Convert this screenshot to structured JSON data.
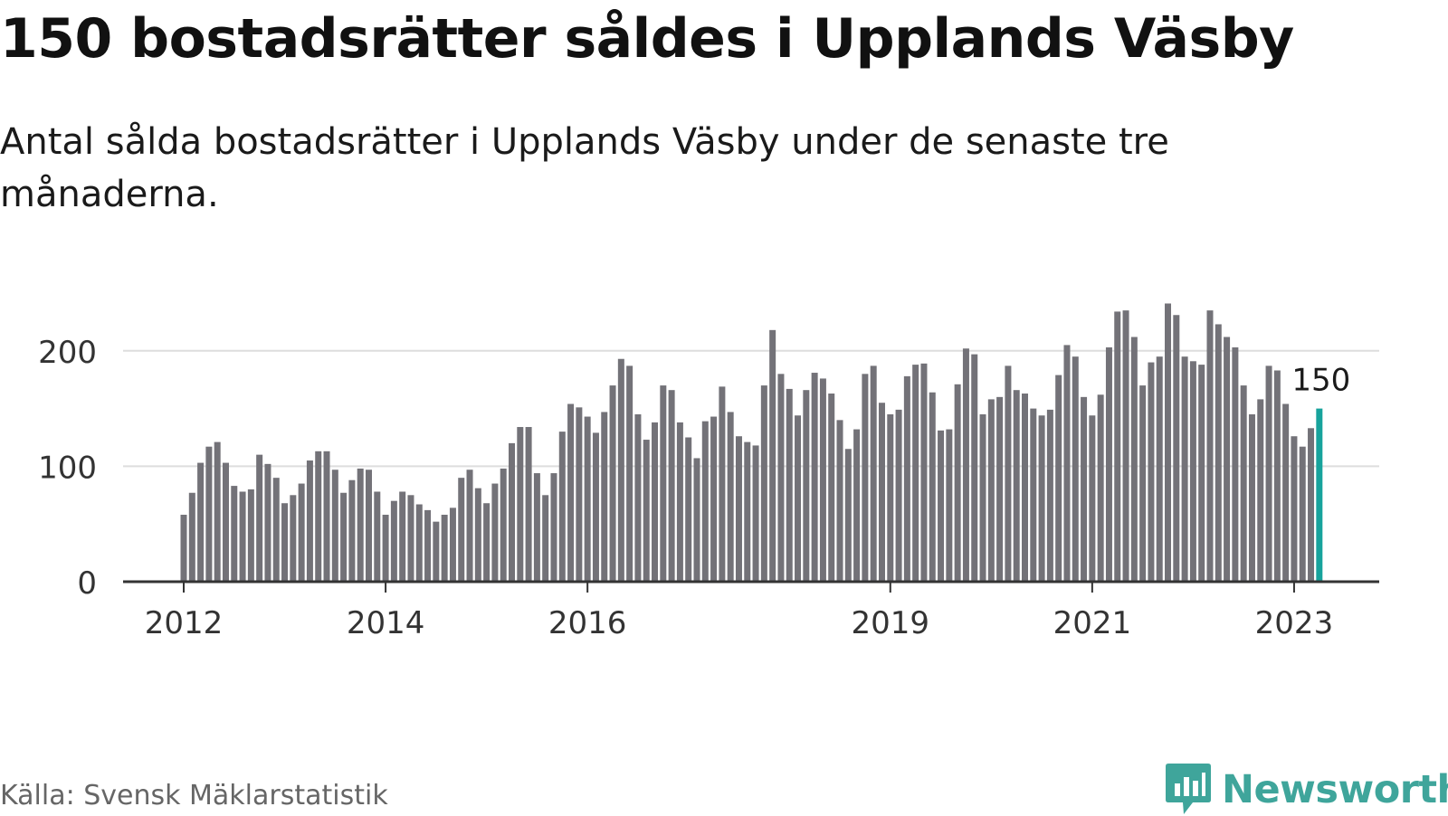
{
  "title": "150 bostadsrätter såldes i Upplands Väsby",
  "subtitle": "Antal sålda bostadsrätter i Upplands Väsby under de senaste tre månaderna.",
  "source": "Källa: Svensk Mäklarstatistik",
  "brand": {
    "name": "Newsworthy",
    "icon": "newsworthy-logo-icon"
  },
  "colors": {
    "bar": "#737278",
    "highlight": "#17a39c",
    "grid": "#dddddd",
    "axis": "#333333",
    "brand": "#3fa59b"
  },
  "chart_data": {
    "type": "bar",
    "title": "150 bostadsrätter såldes i Upplands Väsby",
    "xlabel": "",
    "ylabel": "",
    "ylim": [
      0,
      250
    ],
    "yticks": [
      0,
      100,
      200
    ],
    "grid": true,
    "x_start": "2012-01",
    "xticks": [
      {
        "label": "2012",
        "index": 0
      },
      {
        "label": "2014",
        "index": 24
      },
      {
        "label": "2016",
        "index": 48
      },
      {
        "label": "2019",
        "index": 84
      },
      {
        "label": "2021",
        "index": 108
      },
      {
        "label": "2023",
        "index": 132
      }
    ],
    "values": [
      58,
      77,
      103,
      117,
      121,
      103,
      83,
      78,
      80,
      110,
      102,
      90,
      68,
      75,
      85,
      105,
      113,
      113,
      97,
      77,
      88,
      98,
      97,
      78,
      58,
      70,
      78,
      75,
      67,
      62,
      52,
      58,
      64,
      90,
      97,
      81,
      68,
      85,
      98,
      120,
      134,
      134,
      94,
      75,
      94,
      130,
      154,
      151,
      143,
      129,
      147,
      170,
      193,
      187,
      145,
      123,
      138,
      170,
      166,
      138,
      125,
      107,
      139,
      143,
      169,
      147,
      126,
      121,
      118,
      170,
      218,
      180,
      167,
      144,
      166,
      181,
      176,
      163,
      140,
      115,
      132,
      180,
      187,
      155,
      145,
      149,
      178,
      188,
      189,
      164,
      131,
      132,
      171,
      202,
      197,
      145,
      158,
      160,
      187,
      166,
      163,
      150,
      144,
      149,
      179,
      205,
      195,
      160,
      144,
      162,
      203,
      234,
      235,
      212,
      170,
      190,
      195,
      241,
      231,
      195,
      191,
      188,
      235,
      223,
      212,
      203,
      170,
      145,
      158,
      187,
      183,
      154,
      126,
      117,
      133,
      150
    ],
    "highlight_index": 135,
    "annotation": {
      "text": "150",
      "index": 135
    }
  }
}
